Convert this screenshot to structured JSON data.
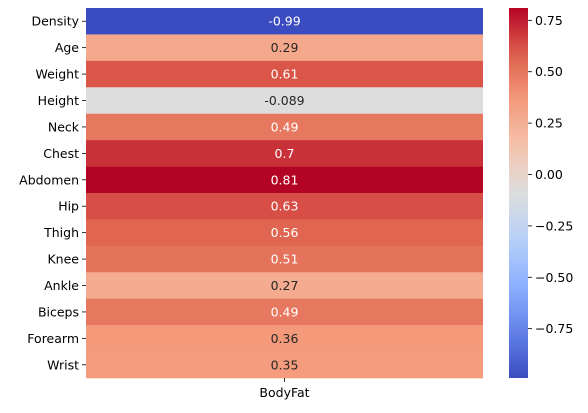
{
  "chart_data": {
    "type": "heatmap",
    "title": "",
    "xlabel": "",
    "ylabel": "",
    "columns": [
      "BodyFat"
    ],
    "rows": [
      "Density",
      "Age",
      "Weight",
      "Height",
      "Neck",
      "Chest",
      "Abdomen",
      "Hip",
      "Thigh",
      "Knee",
      "Ankle",
      "Biceps",
      "Forearm",
      "Wrist"
    ],
    "values": [
      -0.99,
      0.29,
      0.61,
      -0.089,
      0.49,
      0.7,
      0.81,
      0.63,
      0.56,
      0.51,
      0.27,
      0.49,
      0.36,
      0.35
    ],
    "annotations": [
      "-0.99",
      "0.29",
      "0.61",
      "-0.089",
      "0.49",
      "0.7",
      "0.81",
      "0.63",
      "0.56",
      "0.51",
      "0.27",
      "0.49",
      "0.36",
      "0.35"
    ],
    "colormap": "coolwarm",
    "vmin": -0.99,
    "vmax": 0.81,
    "colorbar": {
      "ticks": [
        0.75,
        0.5,
        0.25,
        0.0,
        -0.25,
        -0.5,
        -0.75
      ],
      "tick_labels": [
        "0.75",
        "0.50",
        "0.25",
        "0.00",
        "−0.25",
        "−0.50",
        "−0.75"
      ],
      "placement": "right"
    }
  }
}
